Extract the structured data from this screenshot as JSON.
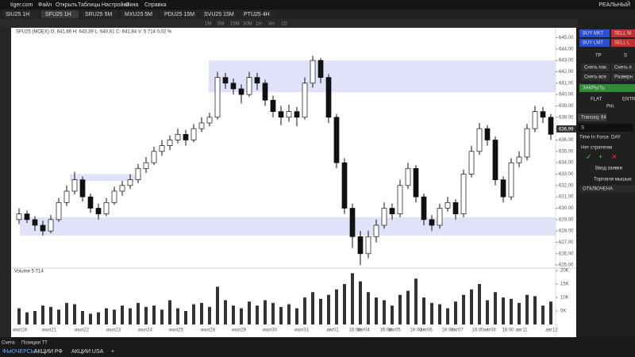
{
  "menu": {
    "brand": "tiger.com",
    "items": [
      "Файл",
      "Открыть",
      "Таблицы",
      "Настройки",
      "Окна",
      "Справка"
    ],
    "mode": "РЕАЛЬНЫЙ"
  },
  "tabs": [
    "SIU25 1H",
    "SFU25 1H",
    "SRU25 5M",
    "MXU25 5M",
    "PDU25 15M",
    "SVU25 15M",
    "PTU25 4H"
  ],
  "timeframes": [
    "1M",
    "5M",
    "15M",
    "30M",
    "1H",
    "4H",
    "1D"
  ],
  "chart_data": {
    "type": "candlestick",
    "info": "SFU25 (MOEX) O: 641,66 H: 643,39 L: 640,61 C: 641,84 V: 5 714 0,02 %",
    "last_price": "636,99",
    "volume_title": "Volume 5 714",
    "ylim": [
      624.8,
      645.8
    ],
    "yticks": [
      {
        "value": 625,
        "label": "625,00"
      },
      {
        "value": 626,
        "label": "626,00"
      },
      {
        "value": 627,
        "label": "627,00"
      },
      {
        "value": 628,
        "label": "628,00"
      },
      {
        "value": 629,
        "label": "629,00"
      },
      {
        "value": 630,
        "label": "630,00"
      },
      {
        "value": 631,
        "label": "631,00"
      },
      {
        "value": 632,
        "label": "632,00"
      },
      {
        "value": 633,
        "label": "633,00"
      },
      {
        "value": 634,
        "label": "634,00"
      },
      {
        "value": 635,
        "label": "635,00"
      },
      {
        "value": 636,
        "label": "636,00"
      },
      {
        "value": 637,
        "label": "637,00"
      },
      {
        "value": 638,
        "label": "638,00"
      },
      {
        "value": 639,
        "label": "639,00"
      },
      {
        "value": 640,
        "label": "640,00"
      },
      {
        "value": 641,
        "label": "641,00"
      },
      {
        "value": 642,
        "label": "642,00"
      },
      {
        "value": 643,
        "label": "643,00"
      },
      {
        "value": 644,
        "label": "644,00"
      },
      {
        "value": 645,
        "label": "645,00"
      }
    ],
    "vlim": [
      0,
      20000
    ],
    "vticks": [
      {
        "value": 5000,
        "label": "5K"
      },
      {
        "value": 10000,
        "label": "10K"
      },
      {
        "value": 15000,
        "label": "15K"
      },
      {
        "value": 20000,
        "label": "20K"
      }
    ],
    "x_labels": [
      "июл18",
      "июл21",
      "июл22",
      "июл23",
      "июл24",
      "июл25",
      "июл28",
      "июл29",
      "июл30",
      "июл31",
      "авг01",
      "16:00",
      "авг04",
      "16:00",
      "авг05",
      "16:00",
      "авг06",
      "16:00",
      "авг07",
      "16:00",
      "авг08",
      "16:00",
      "авг11",
      "авг12"
    ],
    "zones": [
      {
        "low": 640.2,
        "high": 643.0
      },
      {
        "low": 627.6,
        "high": 629.2
      },
      {
        "low": 632.4,
        "high": 633.0
      }
    ],
    "candles": [
      [
        629.0,
        630.0,
        628.6,
        629.5
      ],
      [
        629.5,
        629.8,
        628.7,
        629.0
      ],
      [
        629.0,
        629.3,
        628.0,
        628.5
      ],
      [
        628.5,
        628.9,
        627.6,
        628.0
      ],
      [
        628.0,
        629.4,
        627.8,
        629.0
      ],
      [
        629.0,
        630.9,
        628.8,
        630.5
      ],
      [
        630.5,
        632.0,
        630.2,
        631.5
      ],
      [
        631.5,
        633.2,
        631.2,
        632.5
      ],
      [
        632.5,
        632.8,
        630.6,
        631.0
      ],
      [
        631.0,
        631.3,
        629.6,
        630.0
      ],
      [
        630.0,
        630.4,
        629.0,
        629.5
      ],
      [
        629.5,
        630.9,
        629.3,
        630.5
      ],
      [
        630.5,
        631.9,
        630.3,
        631.5
      ],
      [
        631.5,
        632.4,
        631.1,
        632.0
      ],
      [
        632.0,
        633.0,
        631.7,
        632.5
      ],
      [
        632.5,
        633.9,
        632.2,
        633.5
      ],
      [
        633.5,
        634.5,
        633.1,
        634.0
      ],
      [
        634.0,
        635.4,
        633.8,
        635.0
      ],
      [
        635.0,
        636.0,
        634.6,
        635.5
      ],
      [
        635.5,
        636.4,
        635.1,
        636.0
      ],
      [
        636.0,
        637.0,
        635.7,
        636.5
      ],
      [
        636.5,
        636.9,
        635.5,
        636.0
      ],
      [
        636.0,
        637.4,
        635.8,
        637.0
      ],
      [
        637.0,
        638.0,
        636.7,
        637.5
      ],
      [
        637.5,
        638.4,
        637.2,
        638.0
      ],
      [
        638.0,
        642.0,
        637.8,
        641.5
      ],
      [
        641.5,
        641.9,
        640.5,
        641.0
      ],
      [
        641.0,
        641.4,
        640.0,
        640.5
      ],
      [
        640.5,
        640.9,
        639.2,
        640.0
      ],
      [
        640.0,
        642.0,
        639.8,
        641.5
      ],
      [
        641.5,
        641.9,
        640.4,
        641.0
      ],
      [
        641.0,
        641.3,
        639.0,
        639.5
      ],
      [
        639.5,
        639.9,
        638.0,
        638.5
      ],
      [
        638.5,
        639.0,
        637.3,
        638.0
      ],
      [
        638.0,
        639.1,
        637.6,
        638.5
      ],
      [
        638.5,
        638.9,
        637.2,
        638.0
      ],
      [
        638.0,
        641.5,
        637.8,
        641.0
      ],
      [
        641.0,
        643.4,
        640.6,
        643.0
      ],
      [
        643.0,
        643.2,
        641.0,
        641.5
      ],
      [
        641.5,
        641.8,
        637.5,
        638.0
      ],
      [
        638.0,
        638.3,
        633.5,
        634.0
      ],
      [
        634.0,
        634.4,
        629.5,
        630.0
      ],
      [
        630.0,
        630.4,
        626.5,
        627.5
      ],
      [
        627.5,
        628.0,
        625.0,
        626.0
      ],
      [
        626.0,
        628.0,
        625.6,
        627.5
      ],
      [
        627.5,
        629.0,
        627.0,
        628.5
      ],
      [
        628.5,
        630.5,
        628.2,
        630.0
      ],
      [
        630.0,
        630.4,
        629.0,
        629.5
      ],
      [
        629.5,
        632.5,
        629.2,
        632.0
      ],
      [
        632.0,
        634.0,
        631.7,
        633.5
      ],
      [
        633.5,
        633.8,
        630.5,
        631.0
      ],
      [
        631.0,
        631.3,
        628.5,
        629.0
      ],
      [
        629.0,
        629.4,
        628.0,
        628.5
      ],
      [
        628.5,
        630.4,
        628.2,
        630.0
      ],
      [
        630.0,
        631.0,
        629.7,
        630.5
      ],
      [
        630.5,
        630.8,
        629.0,
        629.5
      ],
      [
        629.5,
        633.4,
        629.2,
        633.0
      ],
      [
        633.0,
        635.5,
        632.7,
        635.0
      ],
      [
        635.0,
        637.5,
        634.7,
        637.0
      ],
      [
        637.0,
        637.3,
        635.5,
        636.0
      ],
      [
        636.0,
        636.3,
        632.0,
        632.5
      ],
      [
        632.5,
        632.8,
        630.5,
        631.0
      ],
      [
        631.0,
        634.4,
        630.7,
        634.0
      ],
      [
        634.0,
        635.0,
        633.6,
        634.5
      ],
      [
        634.5,
        637.4,
        634.2,
        637.0
      ],
      [
        637.0,
        639.0,
        636.7,
        638.5
      ],
      [
        638.5,
        638.9,
        637.5,
        638.0
      ],
      [
        638.0,
        638.3,
        636.0,
        636.5
      ]
    ],
    "volumes": [
      6000,
      4500,
      5000,
      7000,
      6500,
      5500,
      8000,
      7500,
      5000,
      4000,
      4500,
      6000,
      5500,
      7000,
      6000,
      8000,
      6500,
      7000,
      5500,
      9000,
      6000,
      5000,
      7500,
      8000,
      6500,
      14000,
      9000,
      7000,
      6000,
      8500,
      7000,
      9000,
      8000,
      6500,
      7500,
      6000,
      10000,
      12000,
      9500,
      11000,
      13000,
      15000,
      19000,
      16000,
      12000,
      10000,
      9000,
      7000,
      11000,
      12500,
      17000,
      10000,
      8000,
      7500,
      6000,
      8500,
      11000,
      13000,
      15000,
      9000,
      12000,
      10000,
      9500,
      8000,
      11000,
      10500,
      7000,
      8500
    ]
  },
  "panel": {
    "buy_mkt": "BUY MKT",
    "sell_mkt": "SELL M",
    "buy_lmt": "BUY LMT",
    "sell_lmt": "SELL L",
    "tp": "TP",
    "sl": "S",
    "remove_pos": "Снять пок.",
    "remove_p": "Снять п",
    "remove_all": "Снять все",
    "reverse": "Разверн",
    "close": "ЗАКРЫТЬ",
    "flat": "FLAT",
    "entr": "ENTR",
    "pnl": "Pnl.",
    "transaq": "Transaq: 64",
    "s": "S",
    "tif": "Time In Force",
    "tif_value": "DAY",
    "strategy": "Нет стратегии",
    "order_entry": "Ввод заявки",
    "mouse": "Торговля мышью",
    "disabled": "ОТКЛЮЧЕНА"
  },
  "bottom": {
    "tabs": [
      "Счета",
      "Позиции ТТ"
    ],
    "markets": [
      "ФЬЮЧЕРСЫ",
      "АКЦИИ РФ",
      "АКЦИИ USA",
      "+"
    ]
  }
}
